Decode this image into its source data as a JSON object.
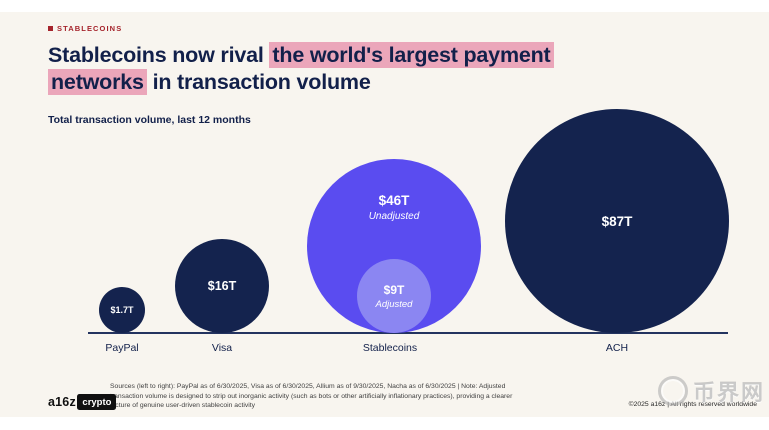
{
  "header": {
    "eyebrow": "STABLECOINS",
    "title_pre": "Stablecoins now rival ",
    "title_highlight1": "the world's largest payment",
    "title_highlight2": "networks",
    "title_post": " in transaction volume"
  },
  "chart_data": {
    "type": "bubble",
    "title": "Stablecoins now rival the world's largest payment networks in transaction volume",
    "subtitle": "Total transaction volume, last 12 months",
    "unit": "USD trillions",
    "grid": false,
    "legend_position": "none",
    "categories": [
      "PayPal",
      "Visa",
      "Stablecoins",
      "ACH"
    ],
    "series": [
      {
        "category": "PayPal",
        "value": 1.7,
        "label": "$1.7T",
        "color": "#14234e"
      },
      {
        "category": "Visa",
        "value": 16,
        "label": "$16T",
        "color": "#14234e"
      },
      {
        "category": "Stablecoins",
        "value": 46,
        "label": "$46T",
        "note": "Unadjusted",
        "color": "#5a4cf0",
        "adjusted": {
          "value": 9,
          "label": "$9T",
          "note": "Adjusted",
          "color": "#8b86f2"
        }
      },
      {
        "category": "ACH",
        "value": 87,
        "label": "$87T",
        "color": "#14234e"
      }
    ]
  },
  "footer": {
    "sources_lines": [
      "Sources (left to right): PayPal as of 6/30/2025, Visa as of 6/30/2025, Allium as of 9/30/2025, Nacha as of 6/30/2025   |   Note: Adjusted",
      "transaction volume is designed to strip out inorganic activity (such as bots or other artificially inflationary practices), providing a clearer",
      "picture of genuine user-driven stablecoin activity"
    ],
    "logo_prefix": "a16z",
    "logo_badge": "crypto",
    "copyright": "©2025 a16z | All rights reserved worldwide",
    "watermark": "币界网"
  }
}
